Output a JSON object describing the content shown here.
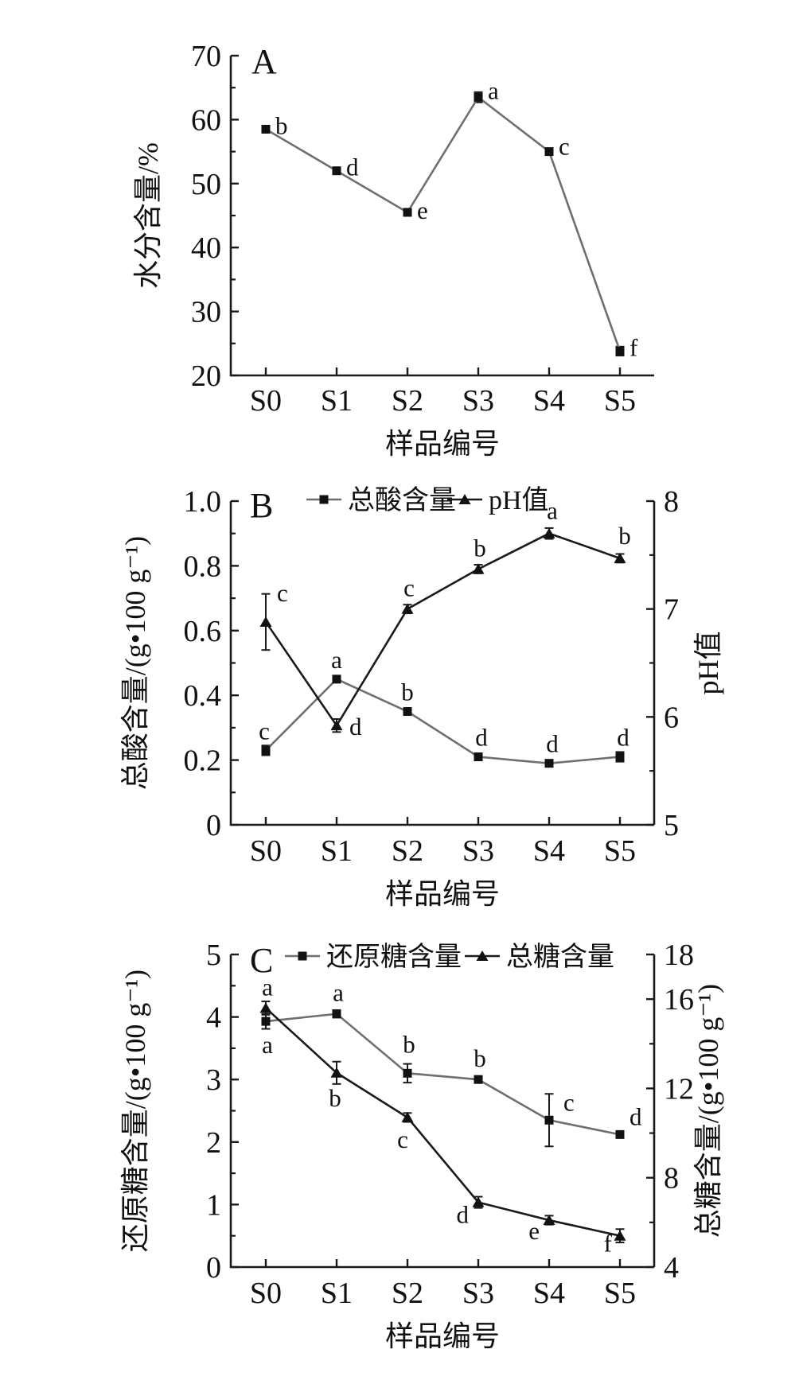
{
  "figure": {
    "background": "#ffffff",
    "description_visible_panels": [
      "A",
      "B",
      "C"
    ]
  },
  "colors": {
    "gray": "#6f6f6f",
    "black": "#1a1a1a",
    "marker": "#111111",
    "text": "#111111",
    "background": "#ffffff"
  },
  "chart_data": [
    {
      "type": "line",
      "panel_label": "A",
      "categories": [
        "S0",
        "S1",
        "S2",
        "S3",
        "S4",
        "S5"
      ],
      "xlabel": "样品编号",
      "legend": null,
      "left_axis": {
        "label": "水分含量/%",
        "min": 20,
        "max": 70,
        "major": [
          {
            "v": 20,
            "t": "20"
          },
          {
            "v": 30,
            "t": "30"
          },
          {
            "v": 40,
            "t": "40"
          },
          {
            "v": 50,
            "t": "50"
          },
          {
            "v": 60,
            "t": "60"
          },
          {
            "v": 70,
            "t": "70"
          }
        ],
        "minor": [
          25,
          35,
          45,
          55,
          65
        ]
      },
      "right_axis": null,
      "series": [
        {
          "key": "moisture",
          "name": "水分含量",
          "axis": "left",
          "marker": "square",
          "line": "gray",
          "values": [
            58.5,
            52.0,
            45.5,
            63.5,
            55.0,
            23.8
          ],
          "errors": [
            0.3,
            0.2,
            0.3,
            0.8,
            0.3,
            0.7
          ],
          "point_labels": [
            {
              "t": "b",
              "dx": 12,
              "dy": 6,
              "a": "s"
            },
            {
              "t": "d",
              "dx": 12,
              "dy": 6,
              "a": "s"
            },
            {
              "t": "e",
              "dx": 12,
              "dy": 8,
              "a": "s"
            },
            {
              "t": "a",
              "dx": 12,
              "dy": 2,
              "a": "s"
            },
            {
              "t": "c",
              "dx": 12,
              "dy": 4,
              "a": "s"
            },
            {
              "t": "f",
              "dx": 12,
              "dy": 6,
              "a": "s"
            }
          ]
        }
      ]
    },
    {
      "type": "line",
      "panel_label": "B",
      "categories": [
        "S0",
        "S1",
        "S2",
        "S3",
        "S4",
        "S5"
      ],
      "xlabel": "样品编号",
      "legend": {
        "items": [
          {
            "label": "总酸含量",
            "marker": "square",
            "line": "gray"
          },
          {
            "label": "pH值",
            "marker": "triangle",
            "line": "black"
          }
        ]
      },
      "left_axis": {
        "label": "总酸含量/(g•100 g⁻¹)",
        "min": 0,
        "max": 1.0,
        "major": [
          {
            "v": 0,
            "t": "0"
          },
          {
            "v": 0.2,
            "t": "0.2"
          },
          {
            "v": 0.4,
            "t": "0.4"
          },
          {
            "v": 0.6,
            "t": "0.6"
          },
          {
            "v": 0.8,
            "t": "0.8"
          },
          {
            "v": 1.0,
            "t": "1.0"
          }
        ],
        "minor": [
          0.1,
          0.3,
          0.5,
          0.7,
          0.9
        ]
      },
      "right_axis": {
        "label": "pH值",
        "min": 5,
        "max": 8,
        "major": [
          {
            "v": 5,
            "t": "5"
          },
          {
            "v": 6,
            "t": "6"
          },
          {
            "v": 7,
            "t": "7"
          },
          {
            "v": 8,
            "t": "8"
          }
        ],
        "minor": [
          5.5,
          6.5,
          7.5
        ]
      },
      "series": [
        {
          "key": "total-acid",
          "name": "总酸含量",
          "axis": "left",
          "marker": "square",
          "line": "gray",
          "values": [
            0.23,
            0.45,
            0.35,
            0.21,
            0.19,
            0.21
          ],
          "errors": [
            0.015,
            0.008,
            0.008,
            0.008,
            0.008,
            0.015
          ],
          "point_labels": [
            {
              "t": "c",
              "dx": -2,
              "dy": -14,
              "a": "m"
            },
            {
              "t": "a",
              "dx": 0,
              "dy": -14,
              "a": "m"
            },
            {
              "t": "b",
              "dx": 0,
              "dy": -14,
              "a": "m"
            },
            {
              "t": "d",
              "dx": 4,
              "dy": -14,
              "a": "m"
            },
            {
              "t": "d",
              "dx": 4,
              "dy": -14,
              "a": "m"
            },
            {
              "t": "d",
              "dx": 4,
              "dy": -14,
              "a": "m"
            }
          ]
        },
        {
          "key": "ph",
          "name": "pH值",
          "axis": "right",
          "marker": "triangle",
          "line": "black",
          "values": [
            6.88,
            5.92,
            7.0,
            7.37,
            7.7,
            7.47
          ],
          "errors": [
            0.26,
            0.06,
            0.04,
            0.04,
            0.05,
            0.04
          ],
          "point_labels": [
            {
              "t": "c",
              "dx": 14,
              "dy": -26,
              "a": "s"
            },
            {
              "t": "d",
              "dx": 16,
              "dy": 12,
              "a": "s"
            },
            {
              "t": "c",
              "dx": 2,
              "dy": -16,
              "a": "m"
            },
            {
              "t": "b",
              "dx": 2,
              "dy": -16,
              "a": "m"
            },
            {
              "t": "a",
              "dx": 4,
              "dy": -18,
              "a": "m"
            },
            {
              "t": "b",
              "dx": 6,
              "dy": -18,
              "a": "m"
            }
          ]
        }
      ]
    },
    {
      "type": "line",
      "panel_label": "C",
      "categories": [
        "S0",
        "S1",
        "S2",
        "S3",
        "S4",
        "S5"
      ],
      "xlabel": "样品编号",
      "legend": {
        "items": [
          {
            "label": "还原糖含量",
            "marker": "square",
            "line": "gray"
          },
          {
            "label": "总糖含量",
            "marker": "triangle",
            "line": "black"
          }
        ]
      },
      "left_axis": {
        "label": "还原糖含量/(g•100 g⁻¹)",
        "min": 0,
        "max": 5,
        "major": [
          {
            "v": 0,
            "t": "0"
          },
          {
            "v": 1,
            "t": "1"
          },
          {
            "v": 2,
            "t": "2"
          },
          {
            "v": 3,
            "t": "3"
          },
          {
            "v": 4,
            "t": "4"
          },
          {
            "v": 5,
            "t": "5"
          }
        ],
        "minor": [
          0.5,
          1.5,
          2.5,
          3.5,
          4.5
        ]
      },
      "right_axis": {
        "label": "总糖含量/(g•100 g⁻¹)",
        "min": 4,
        "max": 18,
        "major": [
          {
            "v": 4,
            "t": "4"
          },
          {
            "v": 8,
            "t": "8"
          },
          {
            "v": 12,
            "t": "12"
          },
          {
            "v": 16,
            "t": "16"
          },
          {
            "v": 18,
            "t": "18"
          }
        ],
        "minor": [
          6,
          10,
          14
        ]
      },
      "series": [
        {
          "key": "reducing-sugar",
          "name": "还原糖含量",
          "axis": "left",
          "marker": "square",
          "line": "gray",
          "values": [
            3.93,
            4.05,
            3.1,
            3.0,
            2.35,
            2.12
          ],
          "errors": [
            0.12,
            0.06,
            0.15,
            0.05,
            0.42,
            0.05
          ],
          "point_labels": [
            {
              "t": "a",
              "dx": 2,
              "dy": 40,
              "a": "m"
            },
            {
              "t": "a",
              "dx": 2,
              "dy": -16,
              "a": "m"
            },
            {
              "t": "b",
              "dx": 2,
              "dy": -26,
              "a": "m"
            },
            {
              "t": "b",
              "dx": 2,
              "dy": -16,
              "a": "m"
            },
            {
              "t": "c",
              "dx": 18,
              "dy": -12,
              "a": "s"
            },
            {
              "t": "d",
              "dx": 12,
              "dy": -12,
              "a": "s"
            }
          ]
        },
        {
          "key": "total-sugar",
          "name": "总糖含量",
          "axis": "right",
          "marker": "triangle",
          "line": "black",
          "values": [
            15.6,
            12.7,
            10.7,
            6.9,
            6.1,
            5.4
          ],
          "errors": [
            0.3,
            0.5,
            0.2,
            0.25,
            0.2,
            0.3
          ],
          "point_labels": [
            {
              "t": "a",
              "dx": 2,
              "dy": -16,
              "a": "m"
            },
            {
              "t": "b",
              "dx": -2,
              "dy": 42,
              "a": "m"
            },
            {
              "t": "c",
              "dx": -6,
              "dy": 38,
              "a": "m"
            },
            {
              "t": "d",
              "dx": -12,
              "dy": 26,
              "a": "e"
            },
            {
              "t": "e",
              "dx": -12,
              "dy": 24,
              "a": "e"
            },
            {
              "t": "f",
              "dx": -10,
              "dy": 20,
              "a": "e"
            }
          ]
        }
      ]
    }
  ]
}
